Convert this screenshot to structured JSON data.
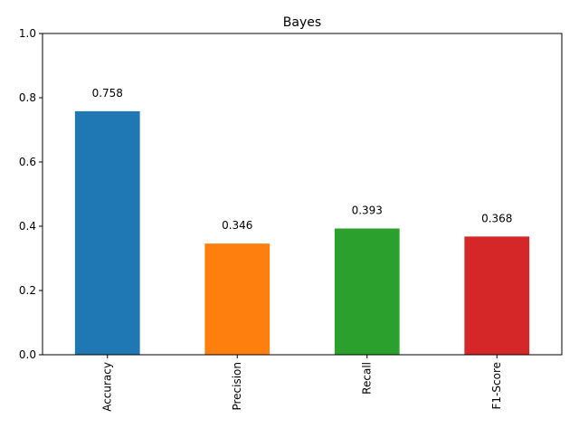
{
  "chart_data": {
    "type": "bar",
    "title": "Bayes",
    "xlabel": "",
    "ylabel": "",
    "categories": [
      "Accuracy",
      "Precision",
      "Recall",
      "F1-Score"
    ],
    "values": [
      0.758,
      0.346,
      0.393,
      0.368
    ],
    "value_labels": [
      "0.758",
      "0.346",
      "0.393",
      "0.368"
    ],
    "colors": [
      "#1f77b4",
      "#ff7f0e",
      "#2ca02c",
      "#d62728"
    ],
    "ylim": [
      0,
      1
    ],
    "yticks": [
      0.0,
      0.2,
      0.4,
      0.6,
      0.8,
      1.0
    ],
    "ytick_labels": [
      "0.0",
      "0.2",
      "0.4",
      "0.6",
      "0.8",
      "1.0"
    ],
    "grid": false,
    "legend": false
  }
}
